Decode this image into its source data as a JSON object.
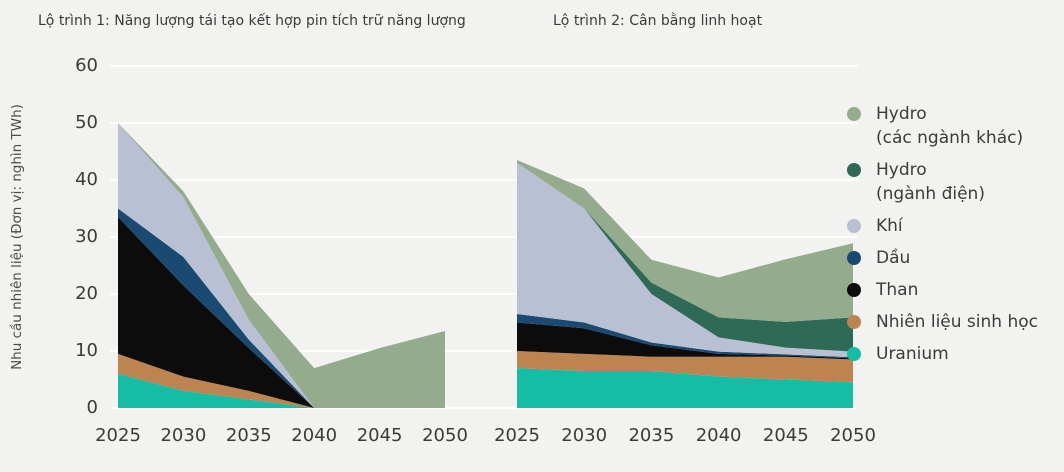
{
  "colors": {
    "background": "#f2f2f0",
    "gridline": "#fdfdfc",
    "text": "#3b3b3a"
  },
  "y_axis_label": "Nhu cầu nhiên liệu (Đơn vị: nghìn TWh)",
  "chart_data": [
    {
      "type": "area",
      "stacked": true,
      "title": "Lộ trình 1: Năng lượng tái tạo kết hợp pin tích trữ năng lượng",
      "x": [
        2025,
        2030,
        2035,
        2040,
        2045,
        2050
      ],
      "ylim": [
        0,
        60
      ],
      "yticks": [
        0,
        10,
        20,
        30,
        40,
        50,
        60
      ],
      "grid": true,
      "series": [
        {
          "name": "Uranium",
          "color": "#14bda3",
          "values": [
            6,
            3,
            1.5,
            0,
            0,
            0
          ]
        },
        {
          "name": "Nhiên liệu sinh học",
          "color": "#bd8452",
          "values": [
            3.5,
            2.5,
            1.5,
            0,
            0,
            0
          ]
        },
        {
          "name": "Than",
          "color": "#0c0c0c",
          "values": [
            24,
            16,
            7.5,
            0,
            0,
            0
          ]
        },
        {
          "name": "Dầu",
          "color": "#1a4a72",
          "values": [
            1.5,
            5,
            1.5,
            0,
            0,
            0
          ]
        },
        {
          "name": "Khí",
          "color": "#b9c0d3",
          "values": [
            15,
            10.5,
            3.5,
            0,
            0,
            0
          ]
        },
        {
          "name": "Hydro (ngành điện)",
          "color": "#2f6a57",
          "values": [
            0,
            0,
            0,
            0,
            0,
            0
          ]
        },
        {
          "name": "Hydro (các ngành khác)",
          "color": "#94ab8d",
          "values": [
            0,
            1,
            4.5,
            7,
            10.5,
            13.5
          ]
        }
      ]
    },
    {
      "type": "area",
      "stacked": true,
      "title": "Lộ trình 2: Cân bằng linh hoạt",
      "x": [
        2025,
        2030,
        2035,
        2040,
        2045,
        2050
      ],
      "ylim": [
        0,
        60
      ],
      "yticks": [
        0,
        10,
        20,
        30,
        40,
        50,
        60
      ],
      "grid": true,
      "series": [
        {
          "name": "Uranium",
          "color": "#14bda3",
          "values": [
            7,
            6.5,
            6.5,
            5.5,
            5,
            4.5
          ]
        },
        {
          "name": "Nhiên liệu sinh học",
          "color": "#bd8452",
          "values": [
            3,
            3,
            2.5,
            3.5,
            4,
            4
          ]
        },
        {
          "name": "Than",
          "color": "#0c0c0c",
          "values": [
            5,
            4.5,
            2,
            0.5,
            0.2,
            0.2
          ]
        },
        {
          "name": "Dầu",
          "color": "#1a4a72",
          "values": [
            1.5,
            1,
            0.5,
            0.4,
            0.2,
            0.2
          ]
        },
        {
          "name": "Khí",
          "color": "#b9c0d3",
          "values": [
            26.5,
            20,
            8.5,
            2.5,
            1.2,
            1
          ]
        },
        {
          "name": "Hydro (ngành điện)",
          "color": "#2f6a57",
          "values": [
            0,
            0,
            2,
            3.5,
            4.5,
            6
          ]
        },
        {
          "name": "Hydro (các ngành khác)",
          "color": "#94ab8d",
          "values": [
            0.5,
            3.5,
            4,
            7,
            11,
            13
          ]
        }
      ]
    }
  ],
  "legend": {
    "position": "right",
    "items": [
      {
        "label": "Hydro",
        "sublabel": "(các ngành khác)",
        "color": "#94ab8d"
      },
      {
        "label": "Hydro",
        "sublabel": "(ngành điện)",
        "color": "#2f6a57"
      },
      {
        "label": "Khí",
        "sublabel": "",
        "color": "#b9c0d3"
      },
      {
        "label": "Dầu",
        "sublabel": "",
        "color": "#1a4a72"
      },
      {
        "label": "Than",
        "sublabel": "",
        "color": "#0c0c0c"
      },
      {
        "label": "Nhiên liệu sinh học",
        "sublabel": "",
        "color": "#bd8452"
      },
      {
        "label": "Uranium",
        "sublabel": "",
        "color": "#14bda3"
      }
    ]
  }
}
